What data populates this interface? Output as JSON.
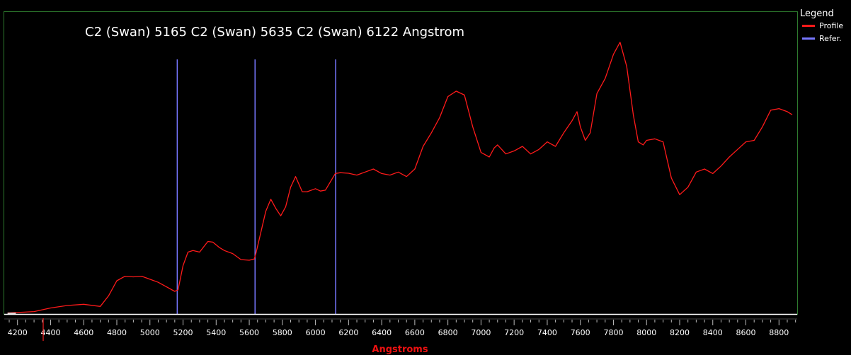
{
  "chart_data": {
    "type": "line",
    "title": "C2 (Swan) 5165   C2 (Swan) 5635  C2 (Swan) 6122 Angstrom",
    "xlabel": "Angstroms",
    "ylabel": "",
    "xlim": [
      4120,
      8910
    ],
    "ylim": [
      0,
      1.0
    ],
    "x_ticks": [
      4200,
      4400,
      4600,
      4800,
      5000,
      5200,
      5400,
      5600,
      5800,
      6000,
      6200,
      6400,
      6600,
      6800,
      7000,
      7200,
      7400,
      7600,
      7800,
      8000,
      8200,
      8400,
      8600,
      8800
    ],
    "legend": {
      "title": "Legend",
      "position": "right"
    },
    "series": [
      {
        "name": "Profile",
        "color": "#ff1a1a",
        "points": [
          [
            4140,
            0.003
          ],
          [
            4200,
            0.005
          ],
          [
            4300,
            0.008
          ],
          [
            4400,
            0.02
          ],
          [
            4500,
            0.028
          ],
          [
            4600,
            0.032
          ],
          [
            4700,
            0.025
          ],
          [
            4750,
            0.06
          ],
          [
            4800,
            0.11
          ],
          [
            4850,
            0.125
          ],
          [
            4900,
            0.123
          ],
          [
            4950,
            0.125
          ],
          [
            5000,
            0.115
          ],
          [
            5050,
            0.105
          ],
          [
            5100,
            0.09
          ],
          [
            5150,
            0.075
          ],
          [
            5170,
            0.08
          ],
          [
            5200,
            0.16
          ],
          [
            5230,
            0.205
          ],
          [
            5260,
            0.21
          ],
          [
            5300,
            0.205
          ],
          [
            5350,
            0.24
          ],
          [
            5380,
            0.238
          ],
          [
            5420,
            0.22
          ],
          [
            5450,
            0.21
          ],
          [
            5500,
            0.2
          ],
          [
            5550,
            0.18
          ],
          [
            5600,
            0.178
          ],
          [
            5630,
            0.182
          ],
          [
            5640,
            0.2
          ],
          [
            5670,
            0.27
          ],
          [
            5700,
            0.34
          ],
          [
            5730,
            0.38
          ],
          [
            5760,
            0.35
          ],
          [
            5790,
            0.325
          ],
          [
            5820,
            0.355
          ],
          [
            5850,
            0.42
          ],
          [
            5880,
            0.455
          ],
          [
            5900,
            0.43
          ],
          [
            5920,
            0.405
          ],
          [
            5950,
            0.405
          ],
          [
            6000,
            0.415
          ],
          [
            6030,
            0.407
          ],
          [
            6060,
            0.41
          ],
          [
            6120,
            0.465
          ],
          [
            6150,
            0.468
          ],
          [
            6200,
            0.466
          ],
          [
            6250,
            0.46
          ],
          [
            6300,
            0.47
          ],
          [
            6350,
            0.48
          ],
          [
            6400,
            0.465
          ],
          [
            6450,
            0.46
          ],
          [
            6500,
            0.47
          ],
          [
            6550,
            0.455
          ],
          [
            6600,
            0.48
          ],
          [
            6650,
            0.555
          ],
          [
            6700,
            0.6
          ],
          [
            6750,
            0.65
          ],
          [
            6800,
            0.72
          ],
          [
            6850,
            0.738
          ],
          [
            6900,
            0.725
          ],
          [
            6950,
            0.62
          ],
          [
            7000,
            0.535
          ],
          [
            7050,
            0.52
          ],
          [
            7080,
            0.55
          ],
          [
            7100,
            0.56
          ],
          [
            7150,
            0.53
          ],
          [
            7200,
            0.54
          ],
          [
            7250,
            0.555
          ],
          [
            7300,
            0.53
          ],
          [
            7350,
            0.545
          ],
          [
            7400,
            0.57
          ],
          [
            7450,
            0.555
          ],
          [
            7500,
            0.6
          ],
          [
            7550,
            0.64
          ],
          [
            7580,
            0.67
          ],
          [
            7600,
            0.62
          ],
          [
            7630,
            0.575
          ],
          [
            7660,
            0.6
          ],
          [
            7700,
            0.73
          ],
          [
            7750,
            0.78
          ],
          [
            7800,
            0.86
          ],
          [
            7840,
            0.9
          ],
          [
            7880,
            0.82
          ],
          [
            7920,
            0.66
          ],
          [
            7950,
            0.57
          ],
          [
            7980,
            0.56
          ],
          [
            8000,
            0.575
          ],
          [
            8050,
            0.58
          ],
          [
            8100,
            0.57
          ],
          [
            8150,
            0.45
          ],
          [
            8200,
            0.395
          ],
          [
            8250,
            0.42
          ],
          [
            8300,
            0.47
          ],
          [
            8350,
            0.48
          ],
          [
            8400,
            0.465
          ],
          [
            8450,
            0.49
          ],
          [
            8500,
            0.52
          ],
          [
            8550,
            0.545
          ],
          [
            8600,
            0.57
          ],
          [
            8650,
            0.575
          ],
          [
            8700,
            0.62
          ],
          [
            8750,
            0.675
          ],
          [
            8800,
            0.68
          ],
          [
            8850,
            0.67
          ],
          [
            8880,
            0.66
          ]
        ]
      },
      {
        "name": "Refer.",
        "color": "#7777ff",
        "lines": [
          5165,
          5635,
          6122
        ]
      }
    ]
  }
}
